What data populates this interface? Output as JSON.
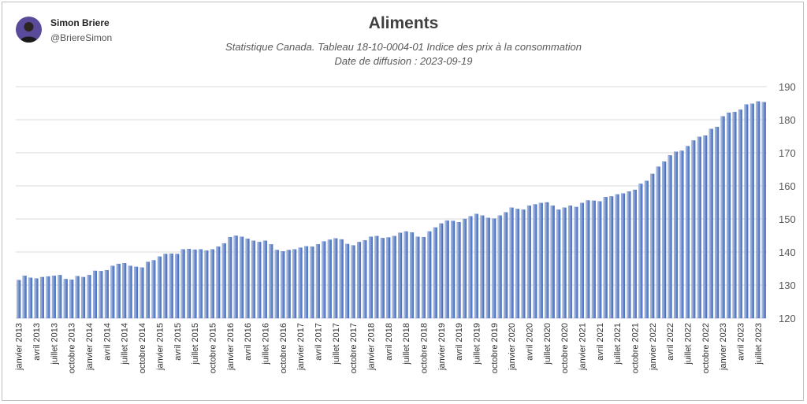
{
  "author": {
    "name": "Simon Briere",
    "handle": "@BriereSimon",
    "avatar_icon": "person-avatar-icon",
    "avatar_bg": "#5a4a9a"
  },
  "chart_data": {
    "type": "bar",
    "title": "Aliments",
    "subtitle": "Statistique Canada. Tableau 18-10-0004-01  Indice des prix à la consommation",
    "subtitle2": "Date de diffusion : 2023-09-19",
    "xlabel": "",
    "ylabel": "",
    "ylim": [
      120,
      190
    ],
    "yticks": [
      120,
      130,
      140,
      150,
      160,
      170,
      180,
      190
    ],
    "y_axis_position": "right",
    "grid": true,
    "legend": "none",
    "bar_color": "#4a74c4",
    "categories": [
      "janvier 2013",
      "février 2013",
      "mars 2013",
      "avril 2013",
      "mai 2013",
      "juin 2013",
      "juillet 2013",
      "août 2013",
      "septembre 2013",
      "octobre 2013",
      "novembre 2013",
      "décembre 2013",
      "janvier 2014",
      "février 2014",
      "mars 2014",
      "avril 2014",
      "mai 2014",
      "juin 2014",
      "juillet 2014",
      "août 2014",
      "septembre 2014",
      "octobre 2014",
      "novembre 2014",
      "décembre 2014",
      "janvier 2015",
      "février 2015",
      "mars 2015",
      "avril 2015",
      "mai 2015",
      "juin 2015",
      "juillet 2015",
      "août 2015",
      "septembre 2015",
      "octobre 2015",
      "novembre 2015",
      "décembre 2015",
      "janvier 2016",
      "février 2016",
      "mars 2016",
      "avril 2016",
      "mai 2016",
      "juin 2016",
      "juillet 2016",
      "août 2016",
      "septembre 2016",
      "octobre 2016",
      "novembre 2016",
      "décembre 2016",
      "janvier 2017",
      "février 2017",
      "mars 2017",
      "avril 2017",
      "mai 2017",
      "juin 2017",
      "juillet 2017",
      "août 2017",
      "septembre 2017",
      "octobre 2017",
      "novembre 2017",
      "décembre 2017",
      "janvier 2018",
      "février 2018",
      "mars 2018",
      "avril 2018",
      "mai 2018",
      "juin 2018",
      "juillet 2018",
      "août 2018",
      "septembre 2018",
      "octobre 2018",
      "novembre 2018",
      "décembre 2018",
      "janvier 2019",
      "février 2019",
      "mars 2019",
      "avril 2019",
      "mai 2019",
      "juin 2019",
      "juillet 2019",
      "août 2019",
      "septembre 2019",
      "octobre 2019",
      "novembre 2019",
      "décembre 2019",
      "janvier 2020",
      "février 2020",
      "mars 2020",
      "avril 2020",
      "mai 2020",
      "juin 2020",
      "juillet 2020",
      "août 2020",
      "septembre 2020",
      "octobre 2020",
      "novembre 2020",
      "décembre 2020",
      "janvier 2021",
      "février 2021",
      "mars 2021",
      "avril 2021",
      "mai 2021",
      "juin 2021",
      "juillet 2021",
      "août 2021",
      "septembre 2021",
      "octobre 2021",
      "novembre 2021",
      "décembre 2021",
      "janvier 2022",
      "février 2022",
      "mars 2022",
      "avril 2022",
      "mai 2022",
      "juin 2022",
      "juillet 2022",
      "août 2022",
      "septembre 2022",
      "octobre 2022",
      "novembre 2022",
      "décembre 2022",
      "janvier 2023",
      "février 2023",
      "mars 2023",
      "avril 2023",
      "mai 2023",
      "juin 2023",
      "juillet 2023",
      "août 2023"
    ],
    "x_tick_labels": [
      "janvier 2013",
      "avril 2013",
      "juillet 2013",
      "octobre 2013",
      "janvier 2014",
      "avril 2014",
      "juillet 2014",
      "octobre 2014",
      "janvier 2015",
      "avril 2015",
      "juillet 2015",
      "octobre 2015",
      "janvier 2016",
      "avril 2016",
      "juillet 2016",
      "octobre 2016",
      "janvier 2017",
      "avril 2017",
      "juillet 2017",
      "octobre 2017",
      "janvier 2018",
      "avril 2018",
      "juillet 2018",
      "octobre 2018",
      "janvier 2019",
      "avril 2019",
      "juillet 2019",
      "octobre 2019",
      "janvier 2020",
      "avril 2020",
      "juillet 2020",
      "octobre 2020",
      "janvier 2021",
      "avril 2021",
      "juillet 2021",
      "octobre 2021",
      "janvier 2022",
      "avril 2022",
      "juillet 2022",
      "octobre 2022",
      "janvier 2023",
      "avril 2023",
      "juillet 2023"
    ],
    "values": [
      131.5,
      132.8,
      132.2,
      132.0,
      132.4,
      132.6,
      132.8,
      133.0,
      131.8,
      131.6,
      132.7,
      132.4,
      133.0,
      134.3,
      134.2,
      134.5,
      135.8,
      136.4,
      136.6,
      135.8,
      135.5,
      135.3,
      137.0,
      137.5,
      138.6,
      139.4,
      139.5,
      139.4,
      140.8,
      140.9,
      140.7,
      140.8,
      140.4,
      140.8,
      141.6,
      142.6,
      144.5,
      144.9,
      144.6,
      144.0,
      143.4,
      143.0,
      143.4,
      142.3,
      140.6,
      140.2,
      140.6,
      140.8,
      141.3,
      141.7,
      141.6,
      142.3,
      143.2,
      143.7,
      144.1,
      143.8,
      142.4,
      142.0,
      143.0,
      143.5,
      144.6,
      144.8,
      144.2,
      144.4,
      144.8,
      145.8,
      146.2,
      145.9,
      144.6,
      144.5,
      146.2,
      147.4,
      148.6,
      149.5,
      149.4,
      149.0,
      150.0,
      150.8,
      151.5,
      151.0,
      150.3,
      150.1,
      151.0,
      152.0,
      153.4,
      153.0,
      152.8,
      154.0,
      154.4,
      154.8,
      155.0,
      154.0,
      152.8,
      153.4,
      154.0,
      153.6,
      154.8,
      155.6,
      155.5,
      155.3,
      156.6,
      156.8,
      157.4,
      157.7,
      158.3,
      158.8,
      160.6,
      161.5,
      163.6,
      165.8,
      167.3,
      169.2,
      170.3,
      170.6,
      172.0,
      173.7,
      174.8,
      175.2,
      177.2,
      177.8,
      181.0,
      182.1,
      182.3,
      183.0,
      184.6,
      184.8,
      185.5,
      185.3
    ]
  }
}
